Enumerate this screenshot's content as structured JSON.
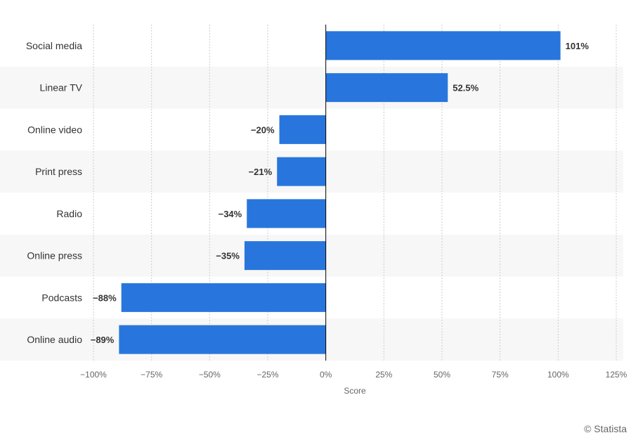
{
  "chart_data": {
    "type": "bar",
    "orientation": "horizontal",
    "categories": [
      "Social media",
      "Linear TV",
      "Online video",
      "Print press",
      "Radio",
      "Online press",
      "Podcasts",
      "Online audio"
    ],
    "values": [
      101,
      52.5,
      -20,
      -21,
      -34,
      -35,
      -88,
      -89
    ],
    "value_labels": [
      "101%",
      "52.5%",
      "−20%",
      "−21%",
      "−34%",
      "−35%",
      "−88%",
      "−89%"
    ],
    "xlabel": "Score",
    "xlim": [
      -100,
      125
    ],
    "x_ticks": [
      -100,
      -75,
      -50,
      -25,
      0,
      25,
      50,
      75,
      100,
      125
    ],
    "x_tick_labels": [
      "−100%",
      "−75%",
      "−50%",
      "−25%",
      "0%",
      "25%",
      "50%",
      "75%",
      "100%",
      "125%"
    ],
    "grid": "vertical dashed",
    "legend": "none",
    "bar_color": "#2876dd"
  },
  "credit": "© Statista"
}
